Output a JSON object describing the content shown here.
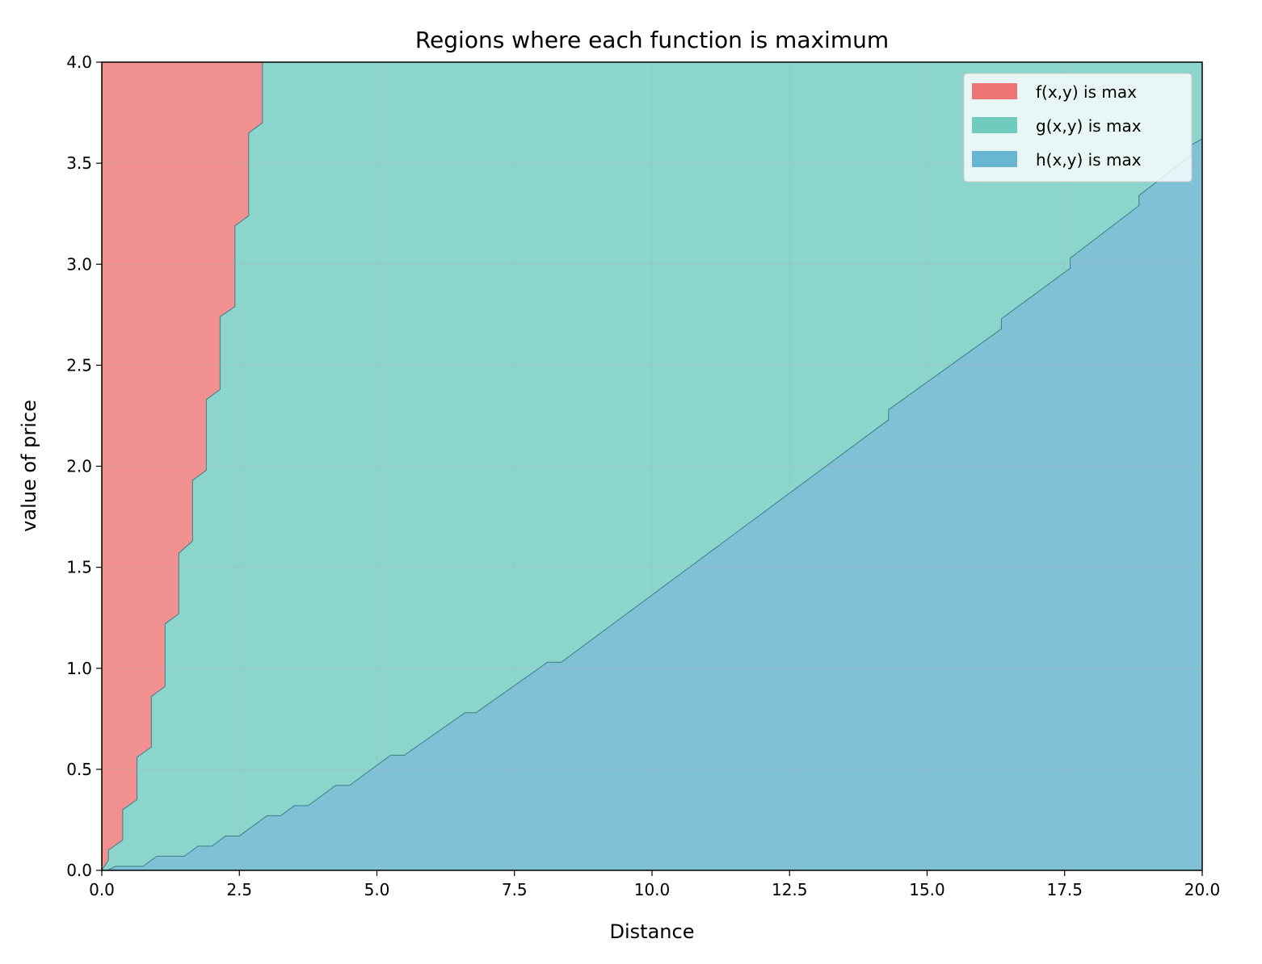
{
  "chart_data": {
    "type": "area",
    "title": "Regions where each function is maximum",
    "xlabel": "Distance",
    "ylabel": "value of price",
    "xlim": [
      0,
      20
    ],
    "ylim": [
      0,
      4
    ],
    "x_ticks": [
      0.0,
      2.5,
      5.0,
      7.5,
      10.0,
      12.5,
      15.0,
      17.5,
      20.0
    ],
    "x_tick_labels": [
      "0.0",
      "2.5",
      "5.0",
      "7.5",
      "10.0",
      "12.5",
      "15.0",
      "17.5",
      "20.0"
    ],
    "y_ticks": [
      0.0,
      0.5,
      1.0,
      1.5,
      2.0,
      2.5,
      3.0,
      3.5,
      4.0
    ],
    "y_tick_labels": [
      "0.0",
      "0.5",
      "1.0",
      "1.5",
      "2.0",
      "2.5",
      "3.0",
      "3.5",
      "4.0"
    ],
    "grid": true,
    "legend_position": "top-right",
    "series": [
      {
        "name": "f(x,y) is max",
        "color": "#ef7474",
        "fill_color": "#f19090"
      },
      {
        "name": "g(x,y) is max",
        "color": "#6fcbbe",
        "fill_color": "#8bd5cd"
      },
      {
        "name": "h(x,y) is max",
        "color": "#68b6d2",
        "fill_color": "#80c1d6"
      }
    ],
    "boundary_f_g": [
      [
        0.0,
        0.0
      ],
      [
        0.12,
        0.05
      ],
      [
        0.12,
        0.1
      ],
      [
        0.38,
        0.15
      ],
      [
        0.38,
        0.3
      ],
      [
        0.64,
        0.35
      ],
      [
        0.64,
        0.56
      ],
      [
        0.9,
        0.61
      ],
      [
        0.9,
        0.86
      ],
      [
        1.15,
        0.91
      ],
      [
        1.15,
        1.22
      ],
      [
        1.4,
        1.27
      ],
      [
        1.4,
        1.57
      ],
      [
        1.65,
        1.63
      ],
      [
        1.65,
        1.93
      ],
      [
        1.9,
        1.98
      ],
      [
        1.9,
        2.33
      ],
      [
        2.15,
        2.38
      ],
      [
        2.15,
        2.74
      ],
      [
        2.42,
        2.79
      ],
      [
        2.42,
        3.19
      ],
      [
        2.67,
        3.24
      ],
      [
        2.67,
        3.65
      ],
      [
        2.92,
        3.7
      ],
      [
        2.92,
        4.0
      ]
    ],
    "boundary_g_h": [
      [
        0.1,
        0.0
      ],
      [
        0.25,
        0.02
      ],
      [
        0.75,
        0.02
      ],
      [
        1.0,
        0.07
      ],
      [
        1.5,
        0.07
      ],
      [
        1.75,
        0.12
      ],
      [
        2.0,
        0.12
      ],
      [
        2.25,
        0.17
      ],
      [
        2.5,
        0.17
      ],
      [
        3.0,
        0.27
      ],
      [
        3.25,
        0.27
      ],
      [
        3.5,
        0.32
      ],
      [
        3.75,
        0.32
      ],
      [
        4.25,
        0.42
      ],
      [
        4.5,
        0.42
      ],
      [
        5.25,
        0.57
      ],
      [
        5.5,
        0.57
      ],
      [
        6.6,
        0.78
      ],
      [
        6.8,
        0.78
      ],
      [
        8.1,
        1.03
      ],
      [
        8.35,
        1.03
      ],
      [
        14.3,
        2.23
      ],
      [
        14.3,
        2.28
      ],
      [
        16.35,
        2.68
      ],
      [
        16.35,
        2.73
      ],
      [
        17.6,
        2.98
      ],
      [
        17.6,
        3.03
      ],
      [
        18.85,
        3.29
      ],
      [
        18.85,
        3.34
      ],
      [
        19.8,
        3.54
      ],
      [
        19.8,
        3.59
      ],
      [
        20.0,
        3.62
      ]
    ]
  }
}
